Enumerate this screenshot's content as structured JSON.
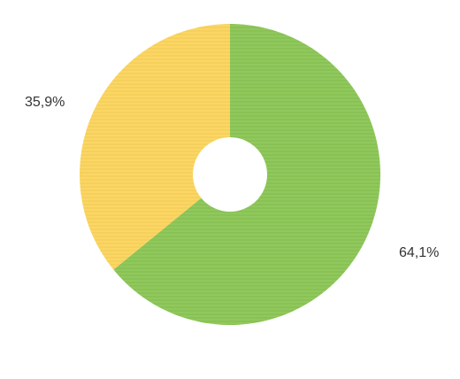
{
  "chart_data": {
    "type": "pie",
    "variant": "donut",
    "values": [
      64.1,
      35.9
    ],
    "labels": [
      "64,1%",
      "35,9%"
    ],
    "colors": [
      "#8cc656",
      "#fcd55e"
    ],
    "start": "top",
    "direction": "clockwise",
    "title": "",
    "legend": "none"
  }
}
